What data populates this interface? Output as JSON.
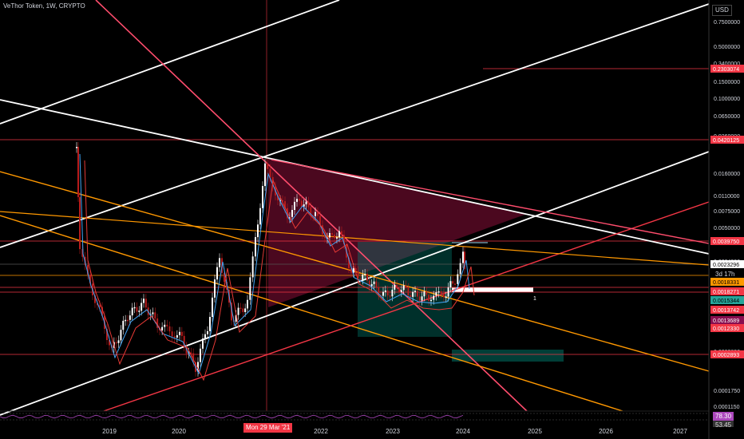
{
  "header": {
    "symbol": "VeThor Token",
    "interval": "1W",
    "exchange": "CRYPTO",
    "currency": "USD"
  },
  "crosshair": {
    "date_label": "Mon 29 Mar '21"
  },
  "countdown": "3d 17h",
  "rsi": {
    "value": "78.30",
    "value2": "53.45"
  },
  "chart_data": {
    "type": "candlestick",
    "price_scale": "log",
    "x_ticks": [
      "2019",
      "2020",
      "2022",
      "2023",
      "2024",
      "2025",
      "2026",
      "2027"
    ],
    "y_ticks": [
      "0.7500000",
      "0.5000000",
      "0.3400000",
      "0.1500000",
      "0.1000000",
      "0.0650000",
      "0.0260000",
      "0.0160000",
      "0.0110000",
      "0.0075000",
      "0.0050000",
      "0.0034000",
      "0.0004000",
      "0.0002600",
      "0.0001750",
      "0.0001150"
    ],
    "price_labels": [
      {
        "text": "0.2303074",
        "bg": "#f23645",
        "fg": "#ffffff"
      },
      {
        "text": "0.0420125",
        "bg": "#f23645",
        "fg": "#ffffff"
      },
      {
        "text": "0.0039750",
        "bg": "#f23645",
        "fg": "#ffffff"
      },
      {
        "text": "0.0023296",
        "bg": "#ffffff",
        "fg": "#000000"
      },
      {
        "text": "0.0018331",
        "bg": "#ff9800",
        "fg": "#000000"
      },
      {
        "text": "0.0018271",
        "bg": "#f23645",
        "fg": "#ffffff"
      },
      {
        "text": "0.0015344",
        "bg": "#26a69a",
        "fg": "#000000"
      },
      {
        "text": "0.0013742",
        "bg": "#f23645",
        "fg": "#ffffff"
      },
      {
        "text": "0.0013689",
        "bg": "#880e4f",
        "fg": "#ffffff"
      },
      {
        "text": "0.0012330",
        "bg": "#f23645",
        "fg": "#ffffff"
      },
      {
        "text": "0.0002893",
        "bg": "#f23645",
        "fg": "#ffffff"
      }
    ],
    "marker_text": "1",
    "colors": {
      "up": "#ffffff",
      "down": "#b71c1c",
      "ma_fast": "#42a5f5",
      "ma_slow": "#e53935",
      "trend_white": "#ffffff",
      "trend_red": "#f23645",
      "trend_orange": "#ff9800",
      "trend_pink": "#ff4d6d"
    }
  }
}
